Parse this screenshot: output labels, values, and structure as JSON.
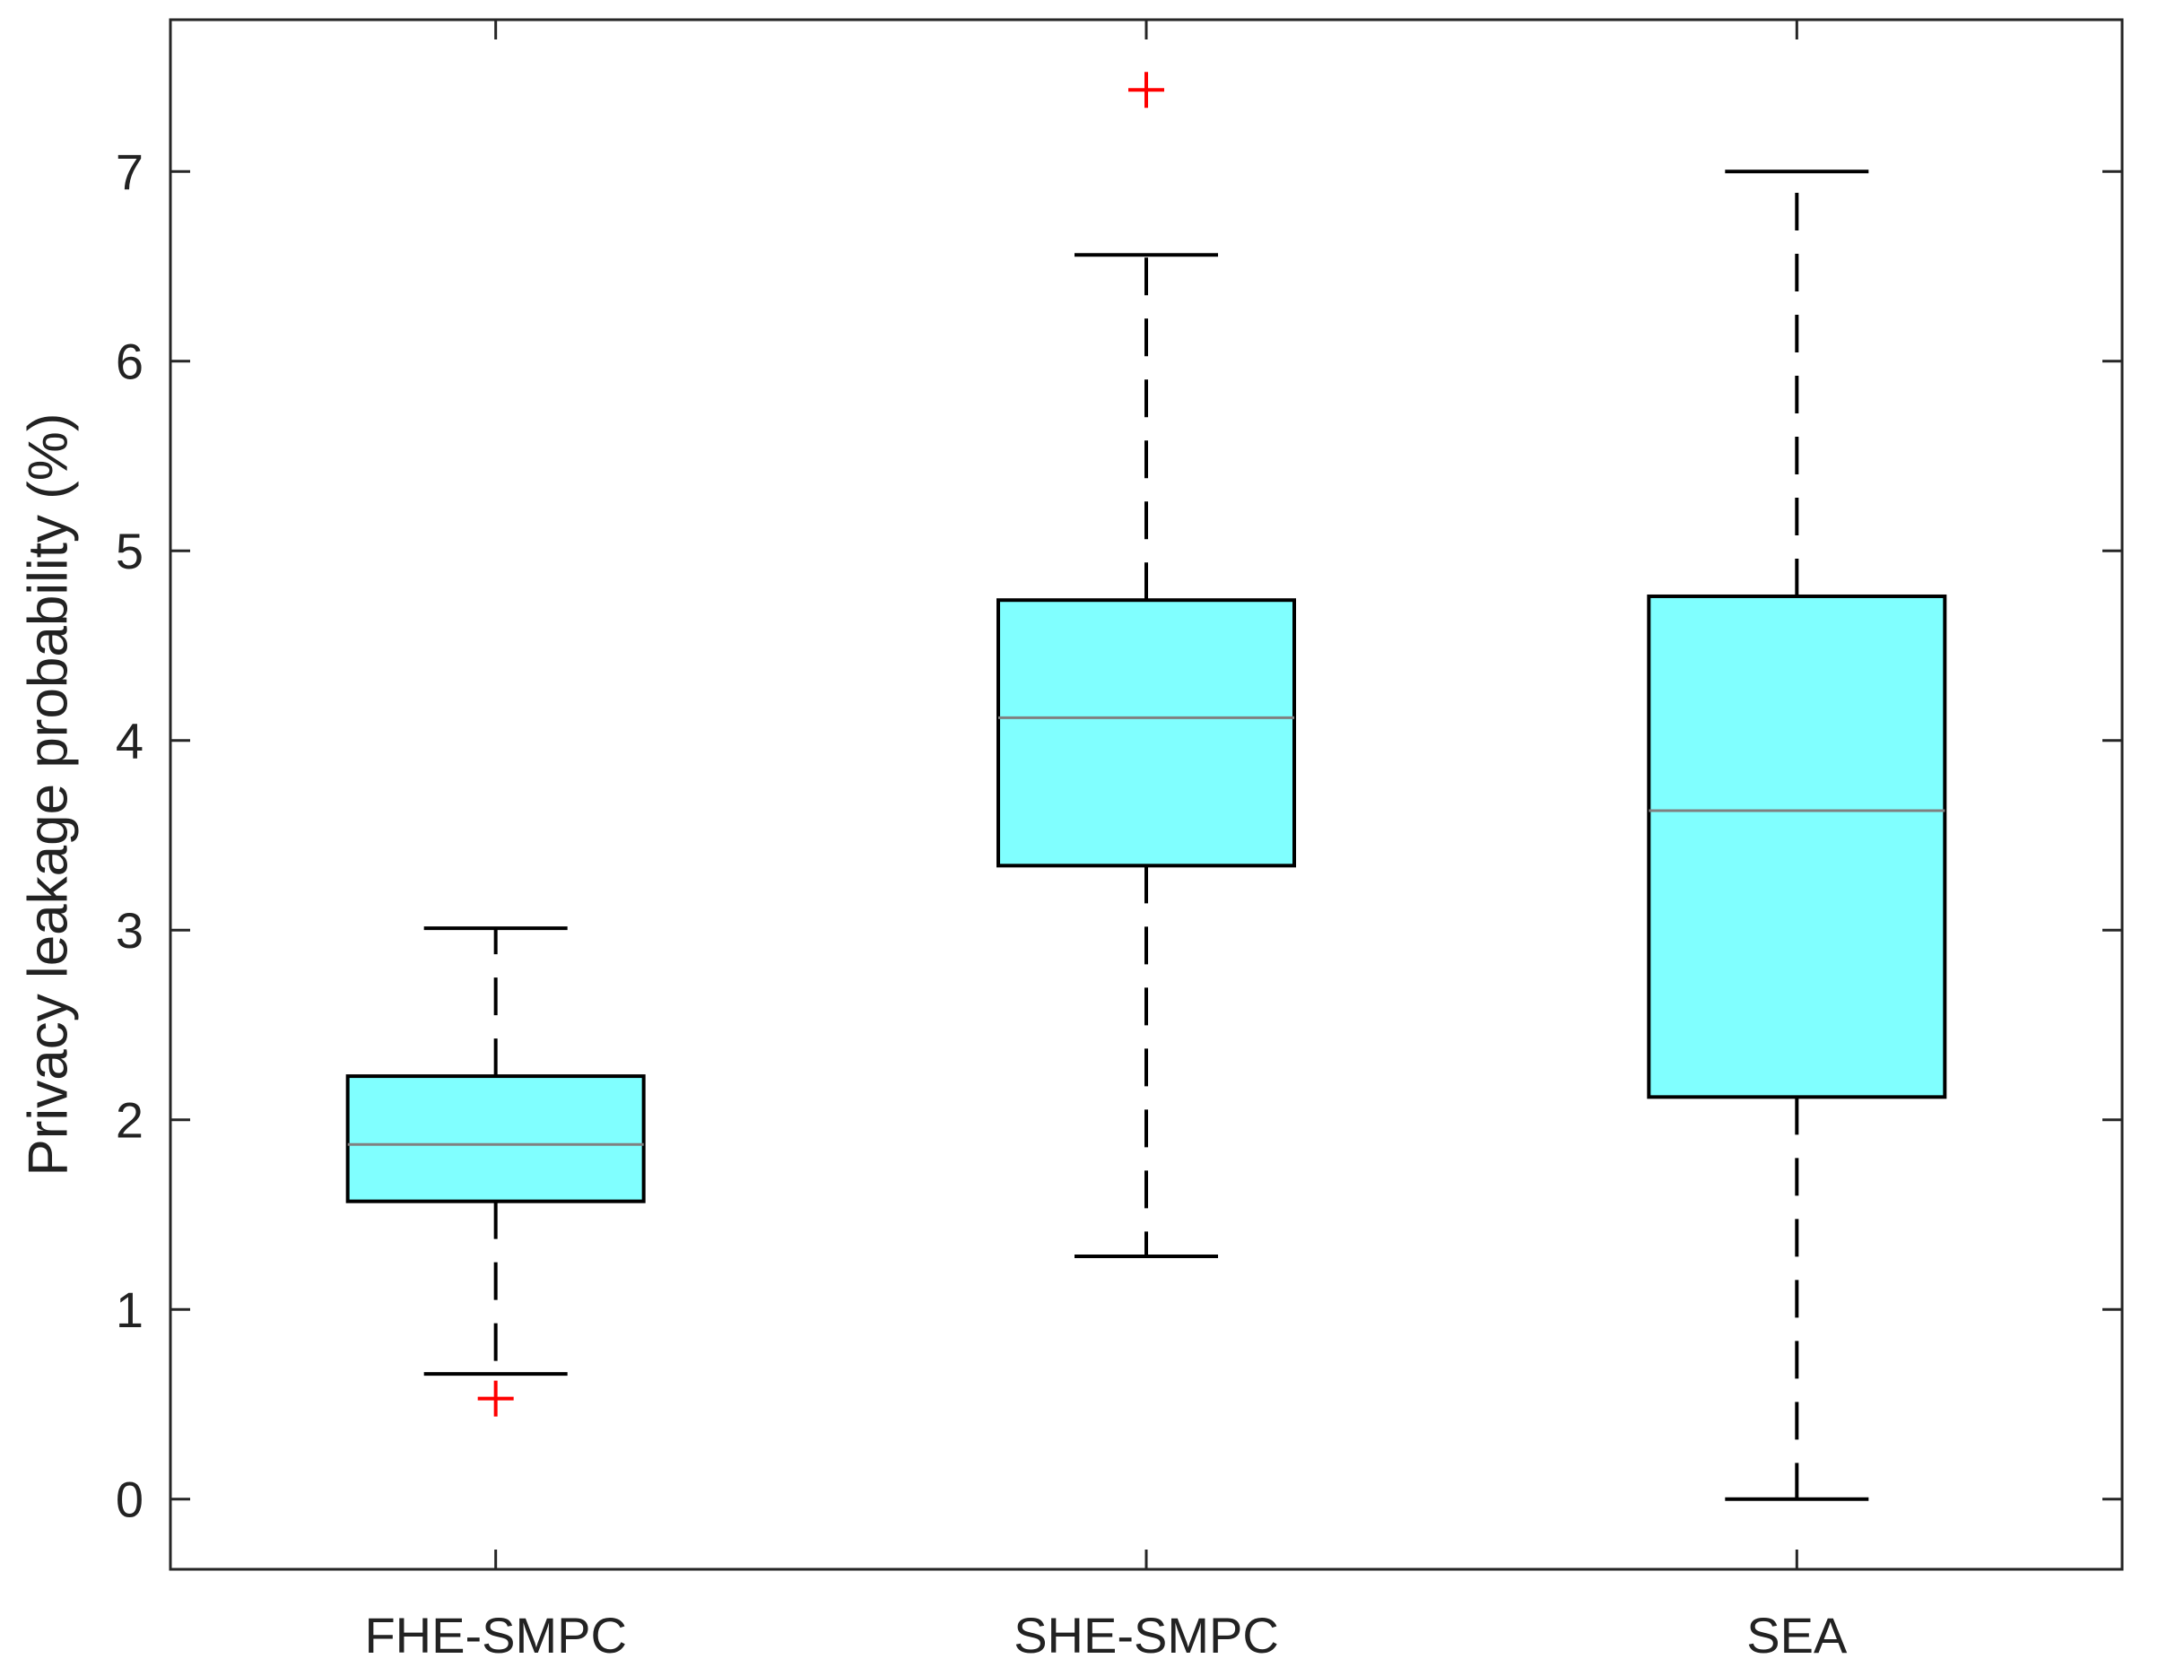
{
  "chart_data": {
    "type": "box",
    "title": "",
    "xlabel": "",
    "ylabel": "Privacy leakage probability (%)",
    "ylim": [
      -0.37,
      7.8
    ],
    "yticks": [
      "0",
      "1",
      "2",
      "3",
      "4",
      "5",
      "6",
      "7"
    ],
    "grid": false,
    "box_fill_color": "#80ffff",
    "median_color": "#808080",
    "outlier_color": "#ff0000",
    "categories": [
      "FHE-SMPC",
      "SHE-SMPC",
      "SEA"
    ],
    "boxes": [
      {
        "category": "FHE-SMPC",
        "whisker_low": 0.66,
        "q1": 1.57,
        "median": 1.87,
        "q3": 2.23,
        "whisker_high": 3.01,
        "outliers": [
          0.53
        ]
      },
      {
        "category": "SHE-SMPC",
        "whisker_low": 1.28,
        "q1": 3.34,
        "median": 4.12,
        "q3": 4.74,
        "whisker_high": 6.56,
        "outliers": [
          7.43
        ]
      },
      {
        "category": "SEA",
        "whisker_low": 0.0,
        "q1": 2.12,
        "median": 3.63,
        "q3": 4.76,
        "whisker_high": 7.0,
        "outliers": []
      }
    ]
  }
}
